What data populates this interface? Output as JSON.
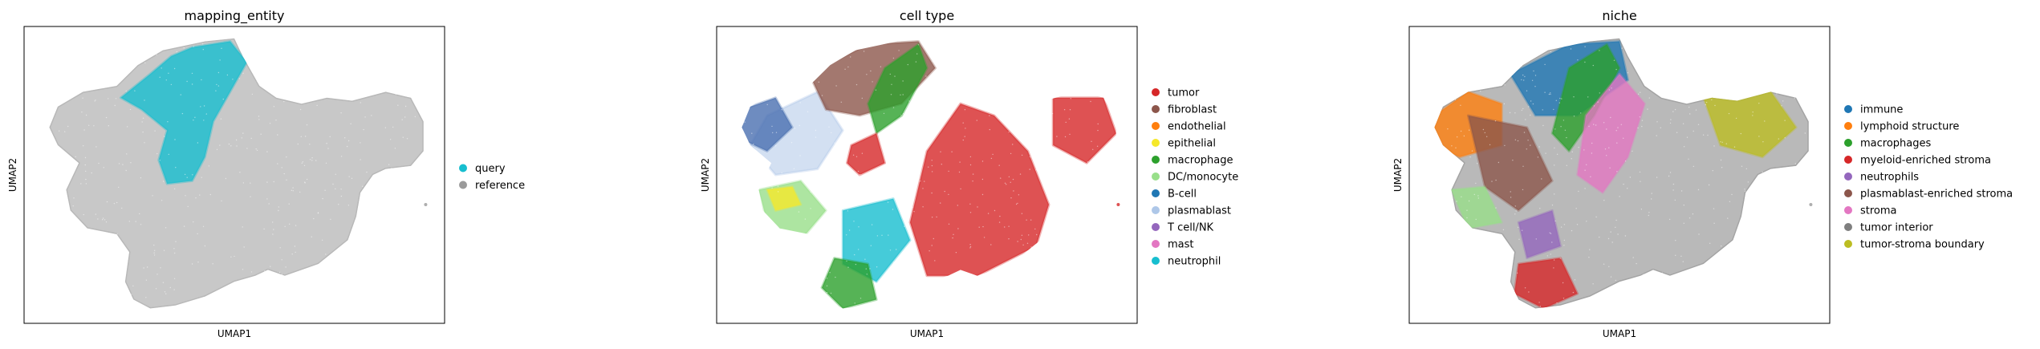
{
  "chart_data": [
    {
      "type": "scatter",
      "title": "mapping_entity",
      "xlabel": "UMAP1",
      "ylabel": "UMAP2",
      "legend_placement": "right",
      "legend": [
        {
          "name": "query",
          "color": "#17becf"
        },
        {
          "name": "reference",
          "color": "#9a9a9a"
        }
      ]
    },
    {
      "type": "scatter",
      "title": "cell type",
      "xlabel": "UMAP1",
      "ylabel": "UMAP2",
      "legend_placement": "right",
      "legend": [
        {
          "name": "tumor",
          "color": "#d62728"
        },
        {
          "name": "fibroblast",
          "color": "#8c564b"
        },
        {
          "name": "endothelial",
          "color": "#ff7f0e"
        },
        {
          "name": "epithelial",
          "color": "#f5e82a"
        },
        {
          "name": "macrophage",
          "color": "#2ca02c"
        },
        {
          "name": "DC/monocyte",
          "color": "#98df8a"
        },
        {
          "name": "B-cell",
          "color": "#1f77b4"
        },
        {
          "name": "plasmablast",
          "color": "#aec7e8"
        },
        {
          "name": "T cell/NK",
          "color": "#9467bd"
        },
        {
          "name": "mast",
          "color": "#e377c2"
        },
        {
          "name": "neutrophil",
          "color": "#17becf"
        }
      ]
    },
    {
      "type": "scatter",
      "title": "niche",
      "xlabel": "UMAP1",
      "ylabel": "UMAP2",
      "legend_placement": "right",
      "legend": [
        {
          "name": "immune",
          "color": "#1f77b4"
        },
        {
          "name": "lymphoid structure",
          "color": "#ff7f0e"
        },
        {
          "name": "macrophages",
          "color": "#2ca02c"
        },
        {
          "name": "myeloid-enriched stroma",
          "color": "#d62728"
        },
        {
          "name": "neutrophils",
          "color": "#9467bd"
        },
        {
          "name": "plasmablast-enriched stroma",
          "color": "#8c564b"
        },
        {
          "name": "stroma",
          "color": "#e377c2"
        },
        {
          "name": "tumor interior",
          "color": "#7f7f7f"
        },
        {
          "name": "tumor-stroma boundary",
          "color": "#bcbd22"
        }
      ]
    }
  ]
}
